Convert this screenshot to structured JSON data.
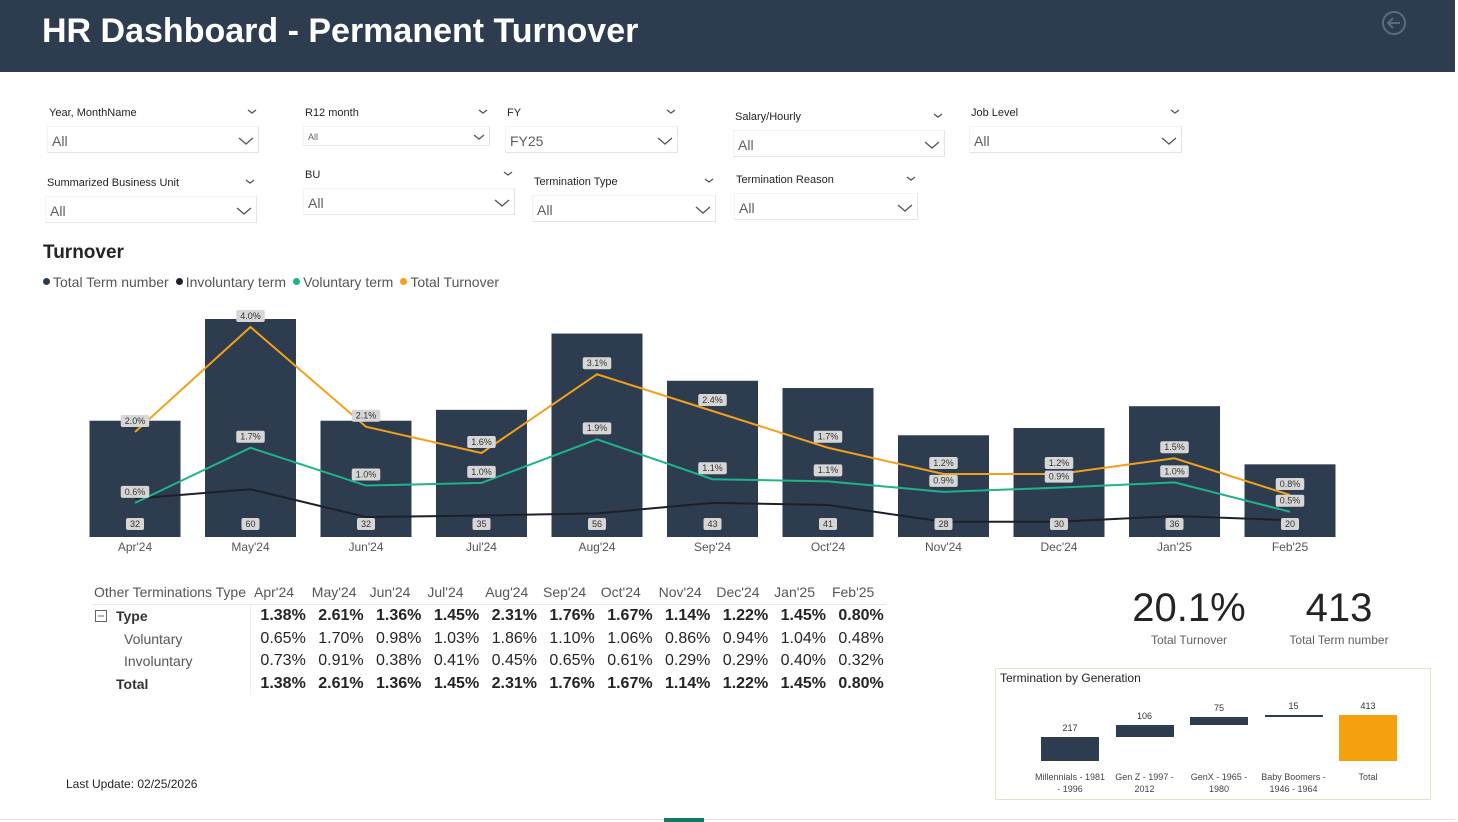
{
  "header": {
    "title": "HR Dashboard - Permanent Turnover"
  },
  "filters": [
    {
      "label": "Year, MonthName",
      "value": "All"
    },
    {
      "label": "R12 month",
      "value": "All"
    },
    {
      "label": "FY",
      "value": "FY25"
    },
    {
      "label": "Salary/Hourly",
      "value": "All"
    },
    {
      "label": "Job Level",
      "value": "All"
    },
    {
      "label": "Summarized Business Unit",
      "value": "All"
    },
    {
      "label": "BU",
      "value": "All"
    },
    {
      "label": "Termination Type",
      "value": "All"
    },
    {
      "label": "Termination Reason",
      "value": "All"
    }
  ],
  "chart_data": [
    {
      "type": "combo",
      "title": "Turnover",
      "categories": [
        "Apr'24",
        "May'24",
        "Jun'24",
        "Jul'24",
        "Aug'24",
        "Sep'24",
        "Oct'24",
        "Nov'24",
        "Dec'24",
        "Jan'25",
        "Feb'25"
      ],
      "series": [
        {
          "name": "Total Term number",
          "color": "#2e3c50",
          "kind": "bar",
          "values": [
            32,
            60,
            32,
            35,
            56,
            43,
            41,
            28,
            30,
            36,
            20
          ]
        },
        {
          "name": "Involuntary term",
          "color": "#1c2129",
          "kind": "line",
          "axis": "y2",
          "values": [
            0.73,
            0.91,
            0.38,
            0.41,
            0.45,
            0.65,
            0.61,
            0.29,
            0.29,
            0.4,
            0.32
          ]
        },
        {
          "name": "Voluntary term",
          "color": "#1fb38a",
          "kind": "line",
          "axis": "y2",
          "values": [
            0.65,
            1.7,
            0.98,
            1.03,
            1.86,
            1.1,
            1.06,
            0.86,
            0.94,
            1.04,
            0.48
          ],
          "value_labels": [
            "0.6%",
            "1.7%",
            "1.0%",
            "1.0%",
            "1.9%",
            "1.1%",
            "1.1%",
            "0.9%",
            "0.9%",
            "1.0%",
            "0.5%"
          ]
        },
        {
          "name": "Total Turnover",
          "color": "#f2a01a",
          "kind": "line",
          "axis": "y2",
          "values": [
            2.0,
            4.0,
            2.1,
            1.6,
            3.1,
            2.4,
            1.7,
            1.2,
            1.2,
            1.5,
            0.8
          ],
          "value_labels": [
            "2.0%",
            "4.0%",
            "2.1%",
            "1.6%",
            "3.1%",
            "2.4%",
            "1.7%",
            "1.2%",
            "1.2%",
            "1.5%",
            "0.8%"
          ]
        }
      ]
    },
    {
      "type": "waterfall",
      "title": "Termination by Generation",
      "categories": [
        "Millennials - 1981 - 1996",
        "Gen Z - 1997 - 2012",
        "GenX - 1965 - 1980",
        "Baby Boomers - 1946 - 1964",
        "Total"
      ],
      "values": [
        217,
        106,
        75,
        15,
        413
      ],
      "colors": [
        "#2e3c50",
        "#2e3c50",
        "#2e3c50",
        "#2e3c50",
        "#f5a00f"
      ]
    }
  ],
  "table": {
    "columns": [
      "Other Terminations Type",
      "Apr'24",
      "May'24",
      "Jun'24",
      "Jul'24",
      "Aug'24",
      "Sep'24",
      "Oct'24",
      "Nov'24",
      "Dec'24",
      "Jan'25",
      "Feb'25"
    ],
    "rows": [
      {
        "label": "Type",
        "cells": [
          "1.38%",
          "2.61%",
          "1.36%",
          "1.45%",
          "2.31%",
          "1.76%",
          "1.67%",
          "1.14%",
          "1.22%",
          "1.45%",
          "0.80%"
        ]
      },
      {
        "label": "Voluntary",
        "cells": [
          "0.65%",
          "1.70%",
          "0.98%",
          "1.03%",
          "1.86%",
          "1.10%",
          "1.06%",
          "0.86%",
          "0.94%",
          "1.04%",
          "0.48%"
        ]
      },
      {
        "label": "Involuntary",
        "cells": [
          "0.73%",
          "0.91%",
          "0.38%",
          "0.41%",
          "0.45%",
          "0.65%",
          "0.61%",
          "0.29%",
          "0.29%",
          "0.40%",
          "0.32%"
        ]
      },
      {
        "label": "Total",
        "cells": [
          "1.38%",
          "2.61%",
          "1.36%",
          "1.45%",
          "2.31%",
          "1.76%",
          "1.67%",
          "1.14%",
          "1.22%",
          "1.45%",
          "0.80%"
        ]
      }
    ]
  },
  "kpis": [
    {
      "value": "20.1%",
      "label": "Total Turnover"
    },
    {
      "value": "413",
      "label": "Total Term number"
    }
  ],
  "footer": {
    "last_update": "Last Update: 02/25/2026"
  }
}
